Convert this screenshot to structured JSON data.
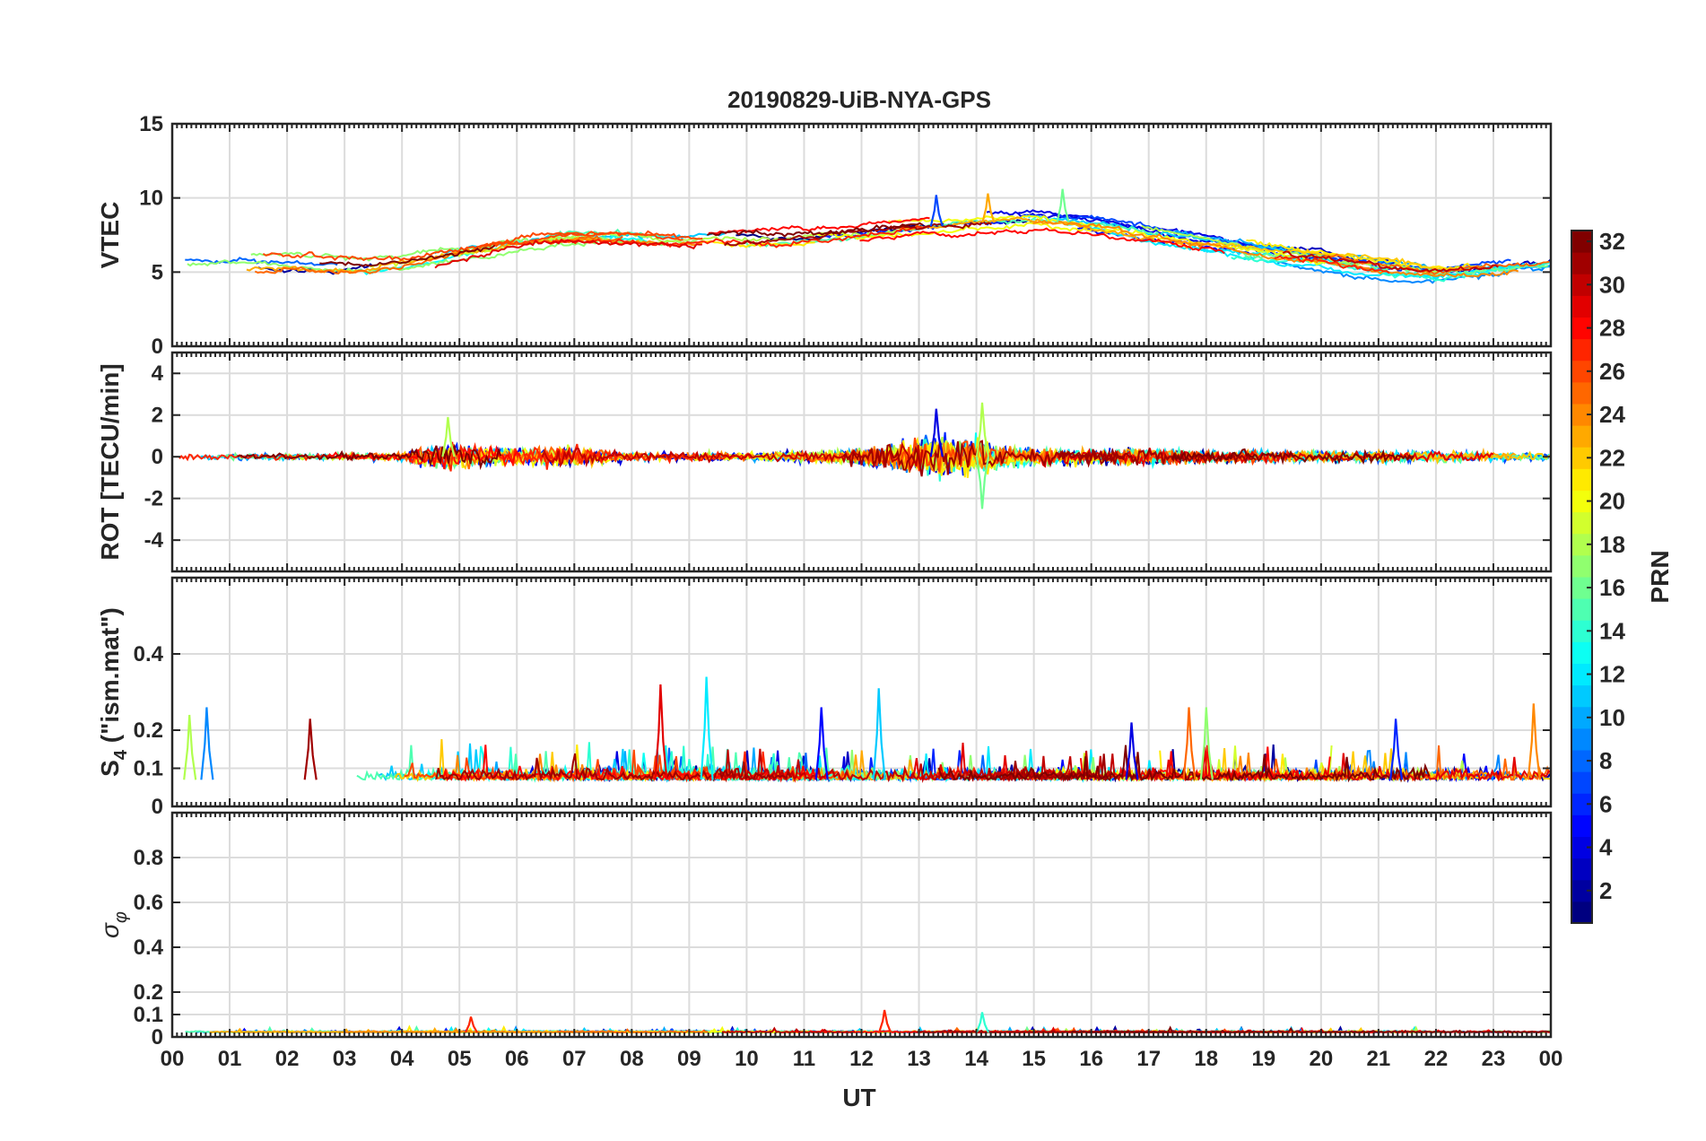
{
  "figure": {
    "title": "20190829-UiB-NYA-GPS",
    "xlabel": "UT",
    "x_tick_labels": [
      "00",
      "01",
      "02",
      "03",
      "04",
      "05",
      "06",
      "07",
      "08",
      "09",
      "10",
      "11",
      "12",
      "13",
      "14",
      "15",
      "16",
      "17",
      "18",
      "19",
      "20",
      "21",
      "22",
      "23",
      "00"
    ]
  },
  "chart_data": [
    {
      "type": "line",
      "panel": "vtec",
      "ylabel": "VTEC",
      "xlim": [
        0,
        24
      ],
      "ylim": [
        0,
        15
      ],
      "yticks": [
        0,
        5,
        10,
        15
      ],
      "grid": true,
      "series_count": 32,
      "color_by": "PRN",
      "profile_hours": [
        0,
        1,
        2,
        3,
        4,
        5,
        6,
        7,
        8,
        9,
        10,
        11,
        12,
        13,
        14,
        15,
        16,
        17,
        18,
        19,
        20,
        21,
        22,
        23,
        24
      ],
      "profile_values": [
        5.8,
        5.6,
        5.4,
        5.3,
        5.6,
        6.3,
        6.9,
        7.3,
        7.3,
        7.0,
        7.1,
        7.3,
        7.6,
        8.0,
        8.3,
        8.5,
        8.2,
        7.4,
        6.9,
        6.3,
        5.8,
        5.3,
        4.9,
        5.3,
        5.7
      ],
      "notable_peaks": [
        {
          "hour": 15.5,
          "value": 10.6
        },
        {
          "hour": 13.3,
          "value": 10.2
        },
        {
          "hour": 14.2,
          "value": 10.3
        }
      ]
    },
    {
      "type": "line",
      "panel": "rot",
      "ylabel": "ROT [TECU/min]",
      "xlim": [
        0,
        24
      ],
      "ylim": [
        -5.5,
        5
      ],
      "yticks": [
        -4,
        -2,
        0,
        2,
        4
      ],
      "grid": true,
      "series_count": 32,
      "color_by": "PRN",
      "noise_profile_hours": [
        0,
        2,
        4,
        4.7,
        5.5,
        7,
        8,
        10,
        12,
        13,
        13.3,
        14,
        14.5,
        15,
        17,
        18,
        20,
        22,
        24
      ],
      "noise_profile_amplitude": [
        0.25,
        0.25,
        0.3,
        1.2,
        0.7,
        0.8,
        0.35,
        0.3,
        0.6,
        1.4,
        1.8,
        1.5,
        0.8,
        0.6,
        0.6,
        0.5,
        0.4,
        0.4,
        0.3
      ],
      "notable_peaks": [
        {
          "hour": 13.3,
          "value": 2.3
        },
        {
          "hour": 14.1,
          "value": -2.5
        },
        {
          "hour": 14.1,
          "value": 2.6
        },
        {
          "hour": 4.8,
          "value": 1.9
        }
      ]
    },
    {
      "type": "line",
      "panel": "s4",
      "ylabel": "S4 (\"ism.mat\")",
      "ylabel_main": "S",
      "ylabel_sub": "4",
      "ylabel_rest": " (\"ism.mat\")",
      "xlim": [
        0,
        24
      ],
      "ylim": [
        0,
        0.6
      ],
      "yticks": [
        0,
        0.1,
        0.2,
        0.4
      ],
      "grid": true,
      "series_count": 32,
      "color_by": "PRN",
      "baseline": 0.07,
      "notable_peaks": [
        {
          "hour": 0.3,
          "value": 0.24
        },
        {
          "hour": 0.6,
          "value": 0.26
        },
        {
          "hour": 2.4,
          "value": 0.23
        },
        {
          "hour": 8.5,
          "value": 0.32
        },
        {
          "hour": 9.3,
          "value": 0.34
        },
        {
          "hour": 11.3,
          "value": 0.26
        },
        {
          "hour": 12.3,
          "value": 0.31
        },
        {
          "hour": 16.7,
          "value": 0.22
        },
        {
          "hour": 17.7,
          "value": 0.26
        },
        {
          "hour": 18.0,
          "value": 0.26
        },
        {
          "hour": 21.3,
          "value": 0.23
        },
        {
          "hour": 23.7,
          "value": 0.27
        }
      ]
    },
    {
      "type": "line",
      "panel": "sigma_phi",
      "ylabel": "σφ",
      "ylabel_main": "σ",
      "ylabel_sub": "φ",
      "xlim": [
        0,
        24
      ],
      "ylim": [
        0,
        1
      ],
      "yticks": [
        0,
        0.1,
        0.2,
        0.4,
        0.6,
        0.8
      ],
      "grid": true,
      "series_count": 32,
      "color_by": "PRN",
      "baseline": 0.02,
      "notable_peaks": [
        {
          "hour": 5.2,
          "value": 0.09
        },
        {
          "hour": 12.4,
          "value": 0.12
        },
        {
          "hour": 14.1,
          "value": 0.11
        }
      ]
    }
  ],
  "colorbar": {
    "label": "PRN",
    "range": [
      1,
      32
    ],
    "ticks": [
      2,
      4,
      6,
      8,
      10,
      12,
      14,
      16,
      18,
      20,
      22,
      24,
      26,
      28,
      30,
      32
    ],
    "tick_labels": [
      "2",
      "4",
      "6",
      "8",
      "10",
      "12",
      "14",
      "16",
      "18",
      "20",
      "22",
      "24",
      "26",
      "28",
      "30",
      "32"
    ],
    "colormap": "jet"
  }
}
